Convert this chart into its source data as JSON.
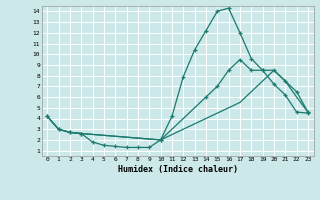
{
  "xlabel": "Humidex (Indice chaleur)",
  "background_color": "#cce8e8",
  "grid_color": "#ffffff",
  "line_color": "#1a7a6e",
  "xlim": [
    -0.5,
    23.5
  ],
  "ylim": [
    0.5,
    14.5
  ],
  "xticks": [
    0,
    1,
    2,
    3,
    4,
    5,
    6,
    7,
    8,
    9,
    10,
    11,
    12,
    13,
    14,
    15,
    16,
    17,
    18,
    19,
    20,
    21,
    22,
    23
  ],
  "yticks": [
    1,
    2,
    3,
    4,
    5,
    6,
    7,
    8,
    9,
    10,
    11,
    12,
    13,
    14
  ],
  "line1_x": [
    0,
    1,
    2,
    3,
    4,
    5,
    6,
    7,
    8,
    9,
    10,
    11,
    12,
    13,
    14,
    15,
    16,
    17,
    18,
    19,
    20,
    21,
    22,
    23
  ],
  "line1_y": [
    4.2,
    3.0,
    2.7,
    2.6,
    1.8,
    1.5,
    1.4,
    1.3,
    1.3,
    1.3,
    2.0,
    4.2,
    7.9,
    10.4,
    12.2,
    14.0,
    14.3,
    12.0,
    9.6,
    8.5,
    7.2,
    6.2,
    4.6,
    4.5
  ],
  "line2_x": [
    0,
    1,
    2,
    3,
    10,
    14,
    15,
    16,
    17,
    18,
    19,
    20,
    21,
    22,
    23
  ],
  "line2_y": [
    4.2,
    3.0,
    2.7,
    2.6,
    2.0,
    6.0,
    7.0,
    8.5,
    9.5,
    8.5,
    8.5,
    8.5,
    7.5,
    6.5,
    4.6
  ],
  "line3_x": [
    0,
    1,
    2,
    3,
    10,
    14,
    15,
    16,
    17,
    18,
    19,
    20,
    21,
    22,
    23
  ],
  "line3_y": [
    4.2,
    3.0,
    2.7,
    2.6,
    2.0,
    4.0,
    4.5,
    5.0,
    5.5,
    6.5,
    7.5,
    8.5,
    7.5,
    6.0,
    4.6
  ]
}
